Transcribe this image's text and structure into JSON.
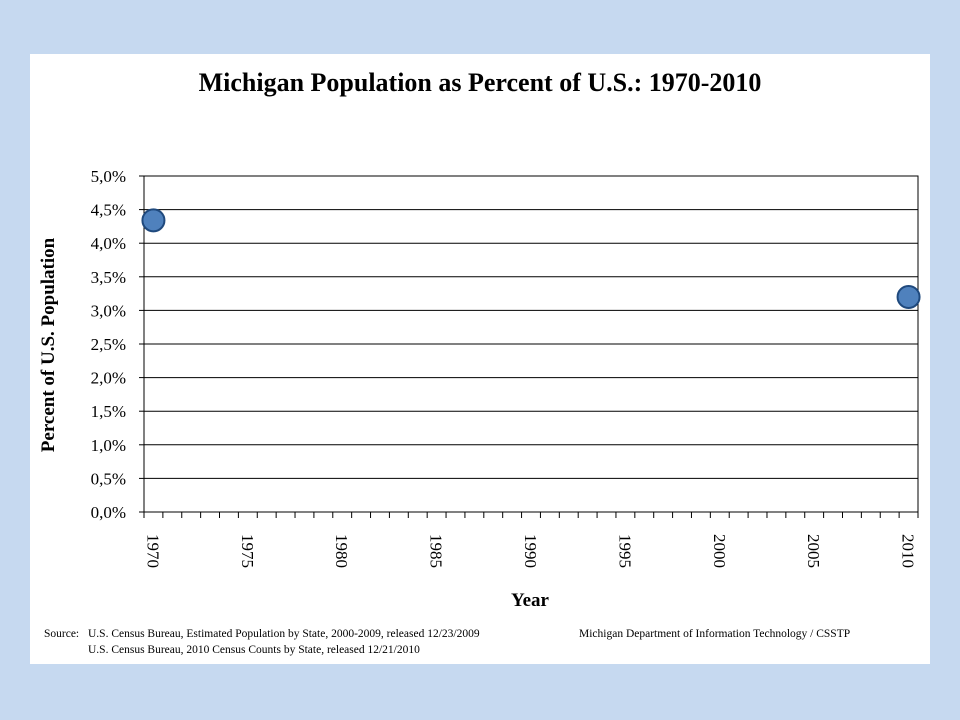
{
  "chart_data": {
    "type": "scatter",
    "title": "Michigan Population as Percent of U.S.: 1970-2010",
    "xlabel": "Year",
    "ylabel": "Percent of U.S. Population",
    "xlim": [
      1970,
      2010
    ],
    "ylim": [
      0.0,
      5.0
    ],
    "x_ticks": [
      "1970",
      "1975",
      "1980",
      "1985",
      "1990",
      "1995",
      "2000",
      "2005",
      "2010"
    ],
    "y_ticks": [
      "0,0%",
      "0,5%",
      "1,0%",
      "1,5%",
      "2,0%",
      "2,5%",
      "3,0%",
      "3,5%",
      "4,0%",
      "4,5%",
      "5,0%"
    ],
    "grid": "horizontal",
    "series": [
      {
        "x": [
          1970,
          2010
        ],
        "values": [
          4.34,
          3.2
        ]
      }
    ],
    "marker_color": "#4f81bd",
    "marker_edge_color": "#1f497d"
  },
  "source": {
    "label": "Source:",
    "line1": "U.S. Census Bureau, Estimated Population by State, 2000-2009, released 12/23/2009",
    "line2": "U.S. Census Bureau, 2010 Census  Counts by State, released 12/21/2010",
    "agency": "Michigan Department of Information Technology / CSSTP"
  },
  "colors": {
    "background": "#c6d9f0",
    "card": "#ffffff"
  }
}
